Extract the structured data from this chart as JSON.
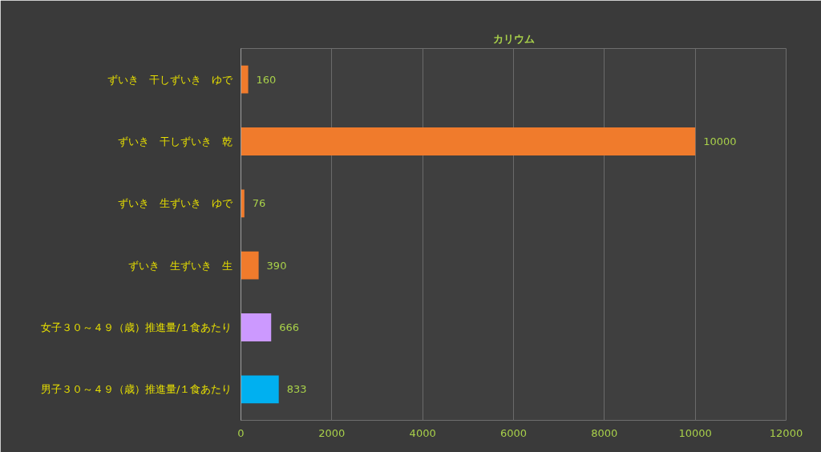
{
  "chart_data": {
    "type": "bar",
    "orientation": "horizontal",
    "title": "カリウム",
    "categories": [
      "ずいき　干しずいき　ゆで",
      "ずいき　干しずいき　乾",
      "ずいき　生ずいき　ゆで",
      "ずいき　生ずいき　生",
      "女子３０～４９（歳）推進量/１食あたり",
      "男子３０～４９（歳）推進量/１食あたり"
    ],
    "values": [
      160,
      10000,
      76,
      390,
      666,
      833
    ],
    "colors": [
      "#f07b2c",
      "#f07b2c",
      "#f07b2c",
      "#f07b2c",
      "#cc99ff",
      "#00b0f0"
    ],
    "xlim": [
      0,
      12000
    ],
    "xticks": [
      0,
      2000,
      4000,
      6000,
      8000,
      10000,
      12000
    ],
    "grid": "x",
    "data_labels": true
  }
}
